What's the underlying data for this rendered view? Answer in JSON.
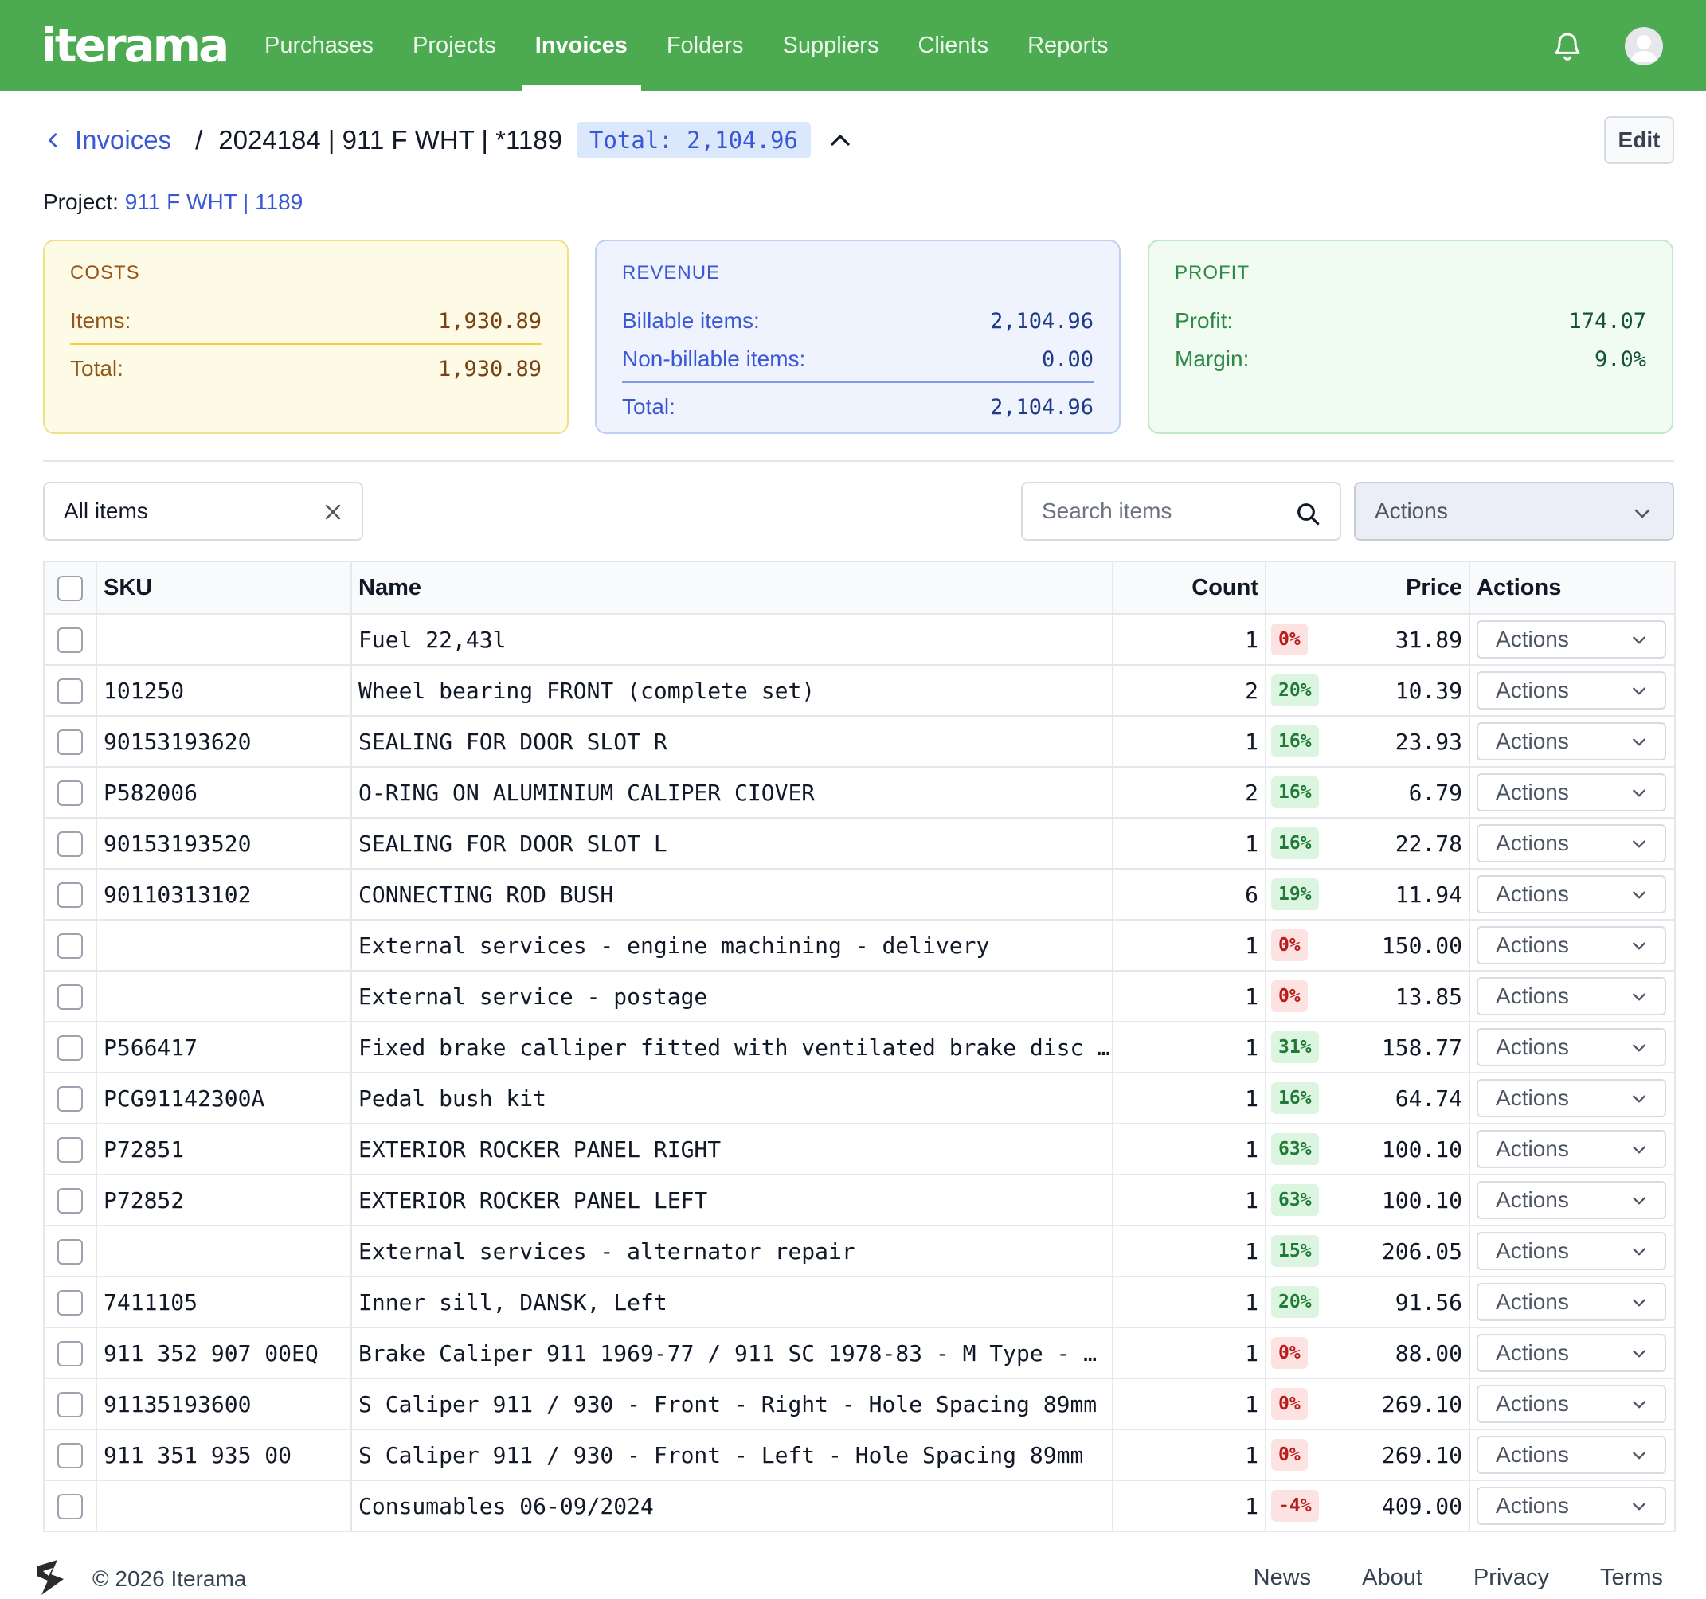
{
  "app": {
    "logo": "iterama"
  },
  "nav": {
    "items": [
      {
        "label": "Purchases",
        "active": false
      },
      {
        "label": "Projects",
        "active": false
      },
      {
        "label": "Invoices",
        "active": true
      },
      {
        "label": "Folders",
        "active": false
      },
      {
        "label": "Suppliers",
        "active": false
      },
      {
        "label": "Clients",
        "active": false
      },
      {
        "label": "Reports",
        "active": false
      }
    ],
    "icons": [
      "bell-icon",
      "avatar"
    ]
  },
  "header": {
    "back_label": "Invoices",
    "separator": "/",
    "title": "2024184 | 911 F WHT | *1189",
    "total_badge": "Total: 2,104.96",
    "edit_label": "Edit",
    "project_label": "Project:",
    "project_link": "911 F WHT | 1189"
  },
  "cards": {
    "costs": {
      "title": "COSTS",
      "items_label": "Items:",
      "items_value": "1,930.89",
      "total_label": "Total:",
      "total_value": "1,930.89"
    },
    "revenue": {
      "title": "REVENUE",
      "billable_label": "Billable items:",
      "billable_value": "2,104.96",
      "nonbillable_label": "Non-billable items:",
      "nonbillable_value": "0.00",
      "total_label": "Total:",
      "total_value": "2,104.96"
    },
    "profit": {
      "title": "PROFIT",
      "profit_label": "Profit:",
      "profit_value": "174.07",
      "margin_label": "Margin:",
      "margin_value": "9.0%"
    }
  },
  "toolbar": {
    "filter_value": "All items",
    "search_placeholder": "Search items",
    "actions_label": "Actions"
  },
  "table": {
    "headers": {
      "sku": "SKU",
      "name": "Name",
      "count": "Count",
      "price": "Price",
      "actions": "Actions"
    },
    "row_action_label": "Actions",
    "rows": [
      {
        "sku": "",
        "name": "Fuel 22,43l",
        "count": "1",
        "margin": "0%",
        "margin_type": "zero",
        "price": "31.89"
      },
      {
        "sku": "101250",
        "name": "Wheel bearing FRONT (complete set)",
        "count": "2",
        "margin": "20%",
        "margin_type": "pos",
        "price": "10.39"
      },
      {
        "sku": "90153193620",
        "name": "SEALING FOR DOOR SLOT R",
        "count": "1",
        "margin": "16%",
        "margin_type": "pos",
        "price": "23.93"
      },
      {
        "sku": "P582006",
        "name": "O-RING ON ALUMINIUM CALIPER CIOVER",
        "count": "2",
        "margin": "16%",
        "margin_type": "pos",
        "price": "6.79"
      },
      {
        "sku": "90153193520",
        "name": "SEALING FOR DOOR SLOT L",
        "count": "1",
        "margin": "16%",
        "margin_type": "pos",
        "price": "22.78"
      },
      {
        "sku": "90110313102",
        "name": "CONNECTING ROD BUSH",
        "count": "6",
        "margin": "19%",
        "margin_type": "pos",
        "price": "11.94"
      },
      {
        "sku": "",
        "name": "External services - engine machining - delivery",
        "count": "1",
        "margin": "0%",
        "margin_type": "zero",
        "price": "150.00"
      },
      {
        "sku": "",
        "name": "External service - postage",
        "count": "1",
        "margin": "0%",
        "margin_type": "zero",
        "price": "13.85"
      },
      {
        "sku": "P566417",
        "name": "Fixed brake calliper fitted with ventilated brake disc …",
        "count": "1",
        "margin": "31%",
        "margin_type": "pos",
        "price": "158.77"
      },
      {
        "sku": "PCG91142300A",
        "name": "Pedal bush kit",
        "count": "1",
        "margin": "16%",
        "margin_type": "pos",
        "price": "64.74"
      },
      {
        "sku": "P72851",
        "name": "EXTERIOR ROCKER PANEL RIGHT",
        "count": "1",
        "margin": "63%",
        "margin_type": "pos",
        "price": "100.10"
      },
      {
        "sku": "P72852",
        "name": "EXTERIOR ROCKER PANEL LEFT",
        "count": "1",
        "margin": "63%",
        "margin_type": "pos",
        "price": "100.10"
      },
      {
        "sku": "",
        "name": "External services - alternator repair",
        "count": "1",
        "margin": "15%",
        "margin_type": "pos",
        "price": "206.05"
      },
      {
        "sku": "7411105",
        "name": "Inner sill, DANSK, Left",
        "count": "1",
        "margin": "20%",
        "margin_type": "pos",
        "price": "91.56"
      },
      {
        "sku": "911 352 907 00EQ",
        "name": "Brake Caliper 911 1969-77 / 911 SC 1978-83 - M Type - …",
        "count": "1",
        "margin": "0%",
        "margin_type": "zero",
        "price": "88.00"
      },
      {
        "sku": "91135193600",
        "name": "S Caliper 911 / 930 - Front - Right - Hole Spacing 89mm",
        "count": "1",
        "margin": "0%",
        "margin_type": "zero",
        "price": "269.10"
      },
      {
        "sku": "911 351 935 00",
        "name": "S Caliper 911 / 930 - Front - Left - Hole Spacing 89mm",
        "count": "1",
        "margin": "0%",
        "margin_type": "zero",
        "price": "269.10"
      },
      {
        "sku": "",
        "name": "Consumables 06-09/2024",
        "count": "1",
        "margin": "-4%",
        "margin_type": "neg",
        "price": "409.00"
      }
    ]
  },
  "footer": {
    "copyright": "© 2026 Iterama",
    "links": [
      "News",
      "About",
      "Privacy",
      "Terms"
    ]
  }
}
